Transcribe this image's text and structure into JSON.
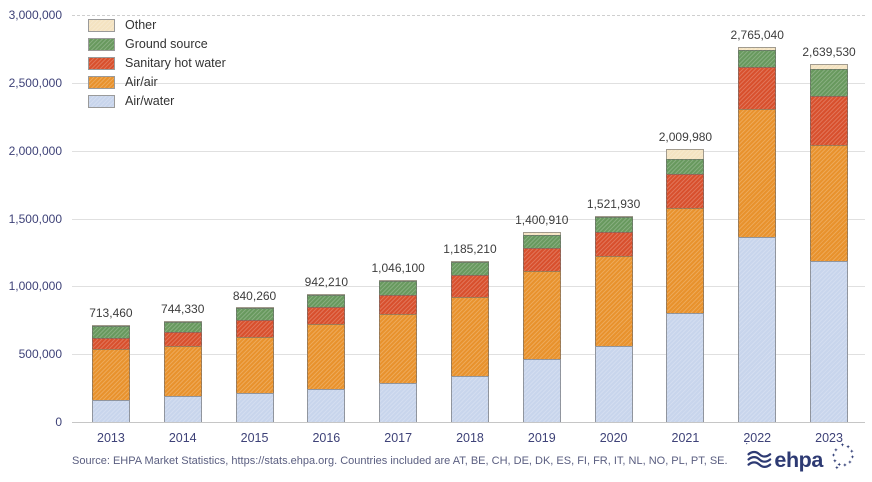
{
  "legend": {
    "items": [
      {
        "label": "Other",
        "key": "other"
      },
      {
        "label": "Ground source",
        "key": "ground_source"
      },
      {
        "label": "Sanitary hot water",
        "key": "sanitary_hot_water"
      },
      {
        "label": "Air/air",
        "key": "air_air"
      },
      {
        "label": "Air/water",
        "key": "air_water"
      }
    ],
    "position": "top-left"
  },
  "chart_data": {
    "type": "bar",
    "stacked": true,
    "title": "",
    "xlabel": "",
    "ylabel": "",
    "x": [
      "2013",
      "2014",
      "2015",
      "2016",
      "2017",
      "2018",
      "2019",
      "2020",
      "2021",
      "2022",
      "2023"
    ],
    "series": [
      {
        "name": "Other",
        "key": "other",
        "values": [
          3460,
          3330,
          3260,
          3210,
          4100,
          5210,
          19910,
          6930,
          69980,
          20040,
          39530
        ]
      },
      {
        "name": "Ground source",
        "key": "ground_source",
        "values": [
          88000,
          78000,
          85000,
          92000,
          102000,
          95000,
          96000,
          115000,
          110000,
          125000,
          200000
        ]
      },
      {
        "name": "Sanitary hot water",
        "key": "sanitary_hot_water",
        "values": [
          82000,
          103000,
          122000,
          127000,
          145000,
          160000,
          175000,
          175000,
          250000,
          315000,
          360000
        ]
      },
      {
        "name": "Air/air",
        "key": "air_air",
        "values": [
          380000,
          370000,
          415000,
          475000,
          507000,
          585000,
          648000,
          665000,
          775000,
          940000,
          855000
        ]
      },
      {
        "name": "Air/water",
        "key": "air_water",
        "values": [
          160000,
          190000,
          215000,
          245000,
          288000,
          340000,
          462000,
          560000,
          805000,
          1365000,
          1185000
        ]
      }
    ],
    "totals": [
      713460,
      744330,
      840260,
      942210,
      1046100,
      1185210,
      1400910,
      1521930,
      2009980,
      2765040,
      2639530
    ],
    "total_labels": [
      "713,460",
      "744,330",
      "840,260",
      "942,210",
      "1,046,100",
      "1,185,210",
      "1,400,910",
      "1,521,930",
      "2,009,980",
      "2,765,040",
      "2,639,530"
    ],
    "ylim": [
      0,
      3000000
    ],
    "yticks": {
      "values": [
        0,
        500000,
        1000000,
        1500000,
        2000000,
        2500000,
        3000000
      ],
      "labels": [
        "0",
        "500,000",
        "1,000,000",
        "1,500,000",
        "2,000,000",
        "2,500,000",
        "3,000,000"
      ]
    },
    "grid": "horizontal",
    "legend_position": "top-left",
    "colors": {
      "other": "#f4e3c1",
      "ground_source": "#68995e",
      "sanitary_hot_water": "#d8502d",
      "air_air": "#e8922d",
      "air_water": "#c8d5ec"
    },
    "axis_text_color": "#3e4278",
    "total_label_color": "#3d3d3d"
  },
  "footer": {
    "source": "Source: EHPA Market Statistics, https://stats.ehpa.org. Countries included are AT, BE, CH, DE, DK, ES, FI, FR, IT, NL, NO, PL, PT, SE.",
    "logo_text": "ehpa"
  }
}
